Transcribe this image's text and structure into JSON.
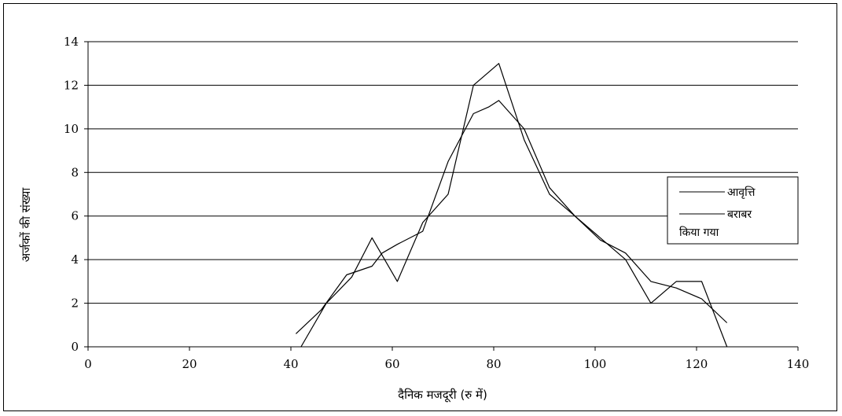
{
  "chart_data": {
    "type": "line",
    "xlabel": "दैनिक मजदूरी (रु में)",
    "ylabel": "अर्जकों की संख्या",
    "xlim": [
      0,
      140
    ],
    "ylim": [
      0,
      14
    ],
    "x_ticks": [
      "0",
      "20",
      "40",
      "60",
      "80",
      "100",
      "120",
      "140"
    ],
    "y_ticks": [
      "0",
      "2",
      "4",
      "6",
      "8",
      "10",
      "12",
      "14"
    ],
    "grid": "horizontal",
    "legend_position": "right",
    "series": [
      {
        "name": "आवृत्ति",
        "points": [
          [
            42,
            0
          ],
          [
            47,
            2
          ],
          [
            52,
            3.2
          ],
          [
            56,
            5
          ],
          [
            61,
            3
          ],
          [
            66,
            5.7
          ],
          [
            71,
            7
          ],
          [
            76,
            12
          ],
          [
            81,
            13
          ],
          [
            86,
            9.5
          ],
          [
            91,
            7
          ],
          [
            96,
            6
          ],
          [
            101,
            5
          ],
          [
            106,
            4
          ],
          [
            111,
            2
          ],
          [
            116,
            3
          ],
          [
            121,
            3
          ],
          [
            126,
            0
          ]
        ]
      },
      {
        "name": "बराबर किया गया",
        "legend_lines": [
          "बराबर",
          "किया गया"
        ],
        "points": [
          [
            41,
            0.6
          ],
          [
            46,
            1.7
          ],
          [
            51,
            3.3
          ],
          [
            56,
            3.7
          ],
          [
            58,
            4.3
          ],
          [
            61,
            4.7
          ],
          [
            66,
            5.3
          ],
          [
            71,
            8.5
          ],
          [
            76,
            10.7
          ],
          [
            79,
            11
          ],
          [
            81,
            11.3
          ],
          [
            86,
            10
          ],
          [
            91,
            7.3
          ],
          [
            96,
            6
          ],
          [
            101,
            4.9
          ],
          [
            106,
            4.3
          ],
          [
            111,
            3
          ],
          [
            116,
            2.7
          ],
          [
            121,
            2.2
          ],
          [
            126,
            1.1
          ]
        ]
      }
    ]
  }
}
